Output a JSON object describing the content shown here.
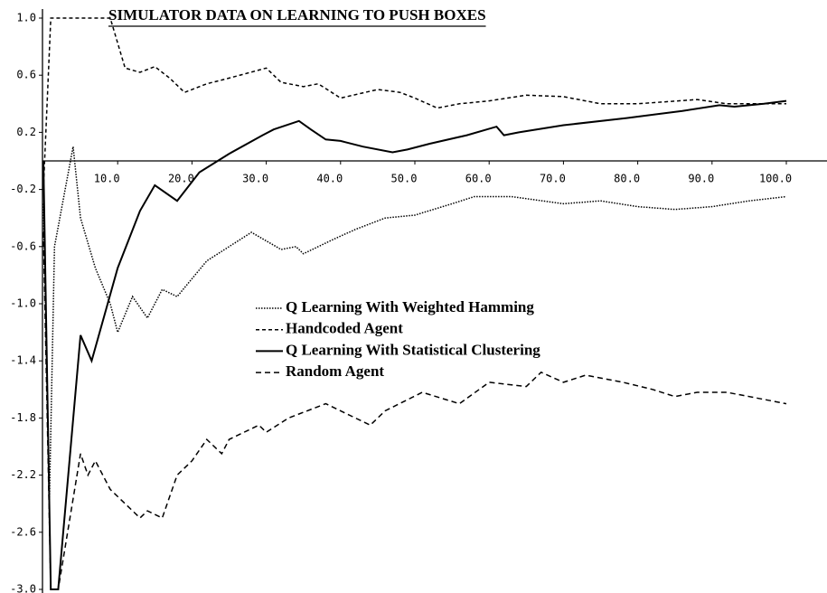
{
  "chart_data": {
    "type": "line",
    "title": "SIMULATOR DATA ON LEARNING TO PUSH BOXES",
    "xlim": [
      0,
      100
    ],
    "ylim": [
      -3.0,
      1.0
    ],
    "xticks": [
      {
        "value": 10,
        "label": "10.0"
      },
      {
        "value": 20,
        "label": "20.0"
      },
      {
        "value": 30,
        "label": "30.0"
      },
      {
        "value": 40,
        "label": "40.0"
      },
      {
        "value": 50,
        "label": "50.0"
      },
      {
        "value": 60,
        "label": "60.0"
      },
      {
        "value": 70,
        "label": "70.0"
      },
      {
        "value": 80,
        "label": "80.0"
      },
      {
        "value": 90,
        "label": "90.0"
      },
      {
        "value": 100,
        "label": "100.0"
      }
    ],
    "yticks": [
      {
        "value": 1.0,
        "label": "1.0"
      },
      0.6,
      0.2,
      -0.2,
      -0.6,
      {
        "value": -1.0,
        "label": "-1.0"
      },
      -1.4,
      -1.8,
      -2.2,
      -2.6,
      {
        "value": -3.0,
        "label": "-3.0"
      }
    ],
    "series": [
      {
        "name": "Q Learning With Weighted Hamming",
        "color": "#000000",
        "style": "dotted",
        "x": [
          0,
          0.8,
          1.5,
          4,
          5,
          7,
          9,
          10,
          12,
          14,
          16,
          18,
          22,
          25,
          28,
          32,
          34,
          35,
          39,
          42,
          46,
          50,
          55,
          58,
          63,
          70,
          75,
          80,
          85,
          90,
          95,
          100
        ],
        "values": [
          -0.3,
          -2.4,
          -0.6,
          0.1,
          -0.4,
          -0.75,
          -1.0,
          -1.2,
          -0.95,
          -1.1,
          -0.9,
          -0.95,
          -0.7,
          -0.6,
          -0.5,
          -0.62,
          -0.6,
          -0.65,
          -0.55,
          -0.48,
          -0.4,
          -0.38,
          -0.3,
          -0.25,
          -0.25,
          -0.3,
          -0.28,
          -0.32,
          -0.34,
          -0.32,
          -0.28,
          -0.25
        ]
      },
      {
        "name": "Handcoded Agent",
        "color": "#000000",
        "style": "dashed",
        "x": [
          0,
          1,
          9,
          11,
          13,
          15,
          17,
          19,
          22,
          25,
          30,
          32,
          35,
          37,
          40,
          45,
          48,
          50,
          53,
          56,
          60,
          65,
          70,
          75,
          80,
          88,
          92,
          100
        ],
        "values": [
          -0.2,
          1.0,
          1.0,
          0.65,
          0.62,
          0.66,
          0.58,
          0.48,
          0.54,
          0.58,
          0.65,
          0.55,
          0.52,
          0.54,
          0.44,
          0.5,
          0.48,
          0.44,
          0.37,
          0.4,
          0.42,
          0.46,
          0.45,
          0.4,
          0.4,
          0.43,
          0.4,
          0.4
        ]
      },
      {
        "name": "Q Learning With Statistical Clustering",
        "color": "#000000",
        "style": "solid",
        "x": [
          0,
          1,
          2,
          5,
          6.5,
          10,
          13,
          15,
          18,
          21,
          25,
          29.5,
          31,
          34.4,
          36,
          38,
          40,
          43,
          47,
          49,
          52,
          57,
          61,
          62,
          64,
          70,
          78.5,
          86,
          91,
          93,
          97,
          100
        ],
        "values": [
          0,
          -3.0,
          -3.0,
          -1.22,
          -1.4,
          -0.75,
          -0.35,
          -0.17,
          -0.28,
          -0.08,
          0.05,
          0.18,
          0.22,
          0.28,
          0.22,
          0.15,
          0.14,
          0.1,
          0.06,
          0.08,
          0.12,
          0.18,
          0.24,
          0.18,
          0.2,
          0.25,
          0.3,
          0.35,
          0.39,
          0.38,
          0.4,
          0.42
        ]
      },
      {
        "name": "Random Agent",
        "color": "#000000",
        "style": "long-dashed",
        "x": [
          0,
          1,
          2,
          5,
          6,
          7,
          9,
          13,
          14,
          16,
          18,
          20,
          22,
          24,
          25,
          29,
          30,
          33,
          37,
          38,
          42,
          44,
          46,
          51,
          56,
          60,
          65,
          67,
          70,
          73,
          78,
          82,
          85,
          88,
          92,
          95,
          100
        ],
        "values": [
          -0.5,
          -3.0,
          -3.0,
          -2.05,
          -2.2,
          -2.1,
          -2.3,
          -2.5,
          -2.45,
          -2.5,
          -2.2,
          -2.1,
          -1.95,
          -2.05,
          -1.95,
          -1.85,
          -1.9,
          -1.8,
          -1.72,
          -1.7,
          -1.8,
          -1.85,
          -1.75,
          -1.62,
          -1.7,
          -1.55,
          -1.58,
          -1.48,
          -1.55,
          -1.5,
          -1.55,
          -1.6,
          -1.65,
          -1.62,
          -1.62,
          -1.65,
          -1.7
        ]
      }
    ]
  }
}
